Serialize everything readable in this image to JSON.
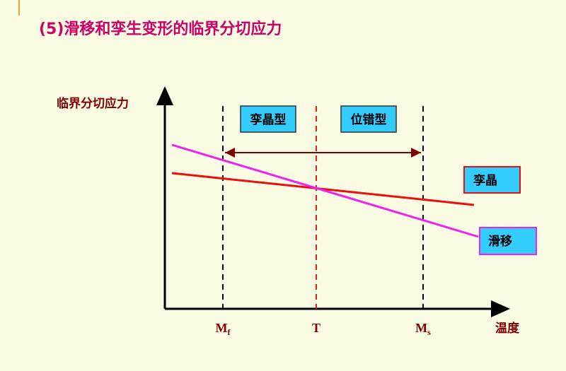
{
  "title": "(5)滑移和孪生变形的临界分切应力",
  "y_axis_label": "临界分切应力",
  "x_axis_label": "温度",
  "x_marks": [
    {
      "main": "M",
      "sub": "f"
    },
    {
      "main": "T"
    },
    {
      "main": "M",
      "sub": "s"
    }
  ],
  "regions": [
    "孪晶型",
    "位错型"
  ],
  "curves": [
    "孪晶",
    "滑移"
  ]
}
